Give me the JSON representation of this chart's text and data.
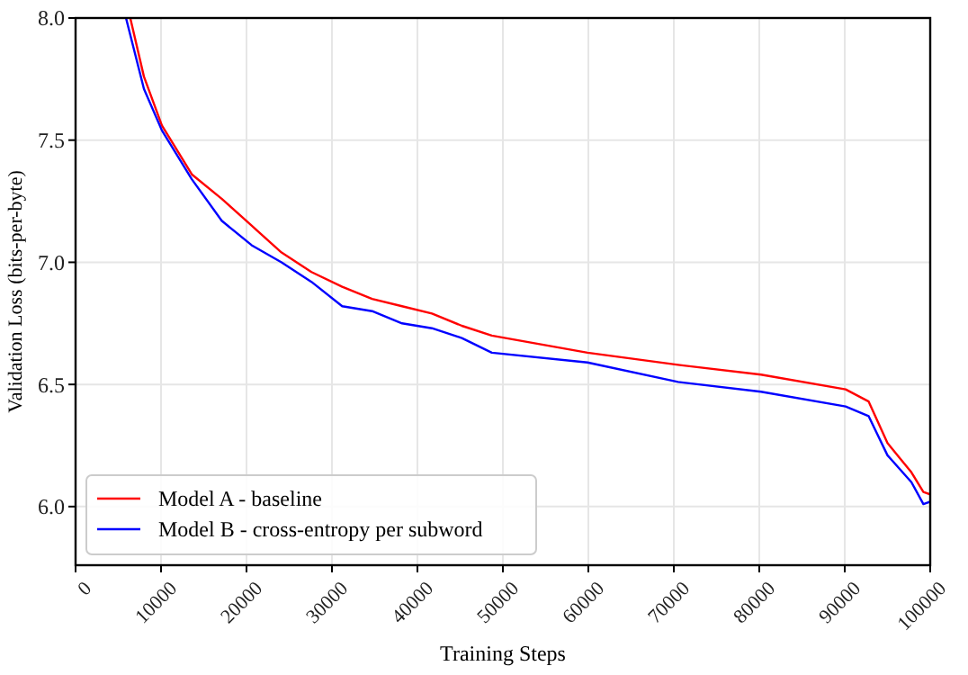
{
  "chart_data": {
    "type": "line",
    "xlabel": "Training Steps",
    "ylabel": "Validation Loss (bits-per-byte)",
    "x": [
      5900,
      8000,
      10100,
      13600,
      17100,
      20600,
      24100,
      27600,
      31200,
      34700,
      38200,
      41700,
      45200,
      48700,
      59900,
      70500,
      80200,
      90100,
      92800,
      95000,
      97800,
      99200,
      100000
    ],
    "series": [
      {
        "name": "Model A - baseline",
        "color": "#ff0000",
        "x": [
          6400,
          8000,
          10100,
          13600,
          17100,
          20600,
          24100,
          27600,
          31200,
          34700,
          38200,
          41700,
          45200,
          48700,
          59900,
          70500,
          80200,
          90100,
          92800,
          95000,
          97800,
          99200,
          100000
        ],
        "values": [
          8.0,
          7.76,
          7.56,
          7.36,
          7.26,
          7.15,
          7.04,
          6.96,
          6.9,
          6.85,
          6.82,
          6.79,
          6.74,
          6.7,
          6.63,
          6.58,
          6.54,
          6.48,
          6.43,
          6.26,
          6.14,
          6.06,
          6.05
        ]
      },
      {
        "name": "Model B - cross-entropy per subword",
        "color": "#0000ff",
        "values": [
          8.0,
          7.71,
          7.54,
          7.34,
          7.17,
          7.07,
          7.0,
          6.92,
          6.82,
          6.8,
          6.75,
          6.73,
          6.69,
          6.63,
          6.59,
          6.51,
          6.47,
          6.41,
          6.37,
          6.21,
          6.1,
          6.01,
          6.02
        ]
      }
    ],
    "xlim": [
      0,
      100000
    ],
    "xticks": [
      0,
      10000,
      20000,
      30000,
      40000,
      50000,
      60000,
      70000,
      80000,
      90000,
      100000
    ],
    "ylim": [
      5.76,
      8.0
    ],
    "yticks": [
      {
        "value": 6,
        "label": "6.0"
      },
      {
        "value": 6.5,
        "label": "6.5"
      },
      {
        "value": 7,
        "label": "7.0"
      },
      {
        "value": 7.5,
        "label": "7.5"
      },
      {
        "value": 8,
        "label": "8.0"
      }
    ],
    "grid": true,
    "legend": "bottom left",
    "line_style": "solid",
    "marker": "none"
  }
}
